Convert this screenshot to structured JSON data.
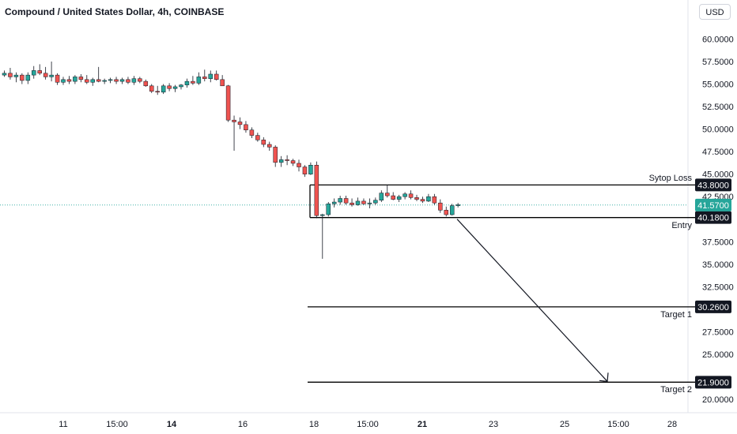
{
  "title": "Compound / United States Dollar, 4h, COINBASE",
  "currency": "USD",
  "chart_data": {
    "type": "candlestick",
    "symbol": "Compound / United States Dollar",
    "interval": "4h",
    "exchange": "COINBASE",
    "colors": {
      "up": "#26a69a",
      "down": "#ef5350",
      "line": "#000000",
      "current": "#26a69a"
    },
    "y_ticks": [
      "60.0000",
      "57.5000",
      "55.0000",
      "52.5000",
      "50.0000",
      "47.5000",
      "45.0000",
      "42.5000",
      "37.5000",
      "35.0000",
      "32.5000",
      "27.5000",
      "25.0000",
      "20.0000"
    ],
    "x_ticks": [
      "11",
      "15:00",
      "14",
      "16",
      "18",
      "15:00",
      "21",
      "23",
      "25",
      "15:00",
      "28"
    ],
    "x_ticks_bold": [
      "14",
      "21"
    ],
    "levels": [
      {
        "name": "Sytop Loss",
        "value": 43.8,
        "label": "43.8000"
      },
      {
        "name": "Entry",
        "value": 40.18,
        "label": "40.1800"
      },
      {
        "name": "Target 1",
        "value": 30.26,
        "label": "30.2600"
      },
      {
        "name": "Target 2",
        "value": 21.9,
        "label": "21.9000"
      }
    ],
    "current_price": {
      "value": 41.57,
      "label": "41.5700"
    },
    "candles": [
      [
        56.0,
        56.5,
        55.8,
        56.2
      ],
      [
        56.2,
        56.8,
        55.5,
        55.8
      ],
      [
        55.8,
        56.3,
        55.2,
        56.0
      ],
      [
        56.0,
        56.2,
        55.0,
        55.4
      ],
      [
        55.4,
        56.3,
        55.0,
        56.0
      ],
      [
        56.0,
        57.0,
        55.6,
        56.5
      ],
      [
        56.5,
        57.2,
        56.0,
        56.2
      ],
      [
        56.2,
        56.9,
        55.5,
        55.8
      ],
      [
        55.8,
        57.5,
        55.3,
        56.0
      ],
      [
        56.0,
        56.2,
        54.9,
        55.2
      ],
      [
        55.2,
        55.8,
        54.9,
        55.5
      ],
      [
        55.5,
        55.9,
        55.0,
        55.3
      ],
      [
        55.3,
        56.0,
        55.0,
        55.8
      ],
      [
        55.8,
        56.1,
        55.2,
        55.5
      ],
      [
        55.5,
        56.0,
        55.0,
        55.2
      ],
      [
        55.2,
        55.7,
        54.8,
        55.5
      ],
      [
        55.5,
        56.9,
        55.2,
        55.3
      ],
      [
        55.3,
        55.6,
        55.0,
        55.4
      ],
      [
        55.4,
        55.7,
        55.1,
        55.5
      ],
      [
        55.5,
        55.8,
        55.0,
        55.3
      ],
      [
        55.3,
        55.7,
        55.0,
        55.5
      ],
      [
        55.5,
        55.8,
        55.0,
        55.2
      ],
      [
        55.2,
        55.9,
        54.9,
        55.6
      ],
      [
        55.6,
        55.8,
        55.1,
        55.3
      ],
      [
        55.3,
        55.5,
        54.7,
        54.8
      ],
      [
        54.8,
        55.0,
        54.0,
        54.2
      ],
      [
        54.2,
        54.8,
        53.8,
        54.1
      ],
      [
        54.1,
        55.0,
        53.9,
        54.8
      ],
      [
        54.8,
        55.1,
        54.2,
        54.5
      ],
      [
        54.5,
        54.9,
        54.1,
        54.7
      ],
      [
        54.7,
        55.0,
        54.4,
        54.9
      ],
      [
        54.9,
        55.6,
        54.6,
        55.3
      ],
      [
        55.3,
        55.9,
        54.9,
        55.1
      ],
      [
        55.1,
        56.3,
        54.9,
        55.8
      ],
      [
        55.8,
        56.6,
        55.3,
        55.6
      ],
      [
        55.6,
        56.5,
        55.2,
        56.1
      ],
      [
        56.1,
        56.5,
        55.4,
        55.5
      ],
      [
        55.5,
        56.0,
        54.8,
        54.8
      ],
      [
        54.8,
        54.9,
        50.8,
        51.0
      ],
      [
        51.0,
        51.5,
        47.6,
        50.8
      ],
      [
        50.8,
        51.3,
        50.0,
        50.5
      ],
      [
        50.5,
        50.9,
        49.6,
        49.9
      ],
      [
        49.9,
        50.2,
        49.0,
        49.3
      ],
      [
        49.3,
        49.6,
        48.6,
        48.8
      ],
      [
        48.8,
        49.1,
        48.0,
        48.3
      ],
      [
        48.3,
        48.6,
        47.6,
        48.0
      ],
      [
        48.0,
        48.2,
        45.8,
        46.3
      ],
      [
        46.3,
        47.0,
        45.8,
        46.6
      ],
      [
        46.6,
        47.1,
        46.0,
        46.5
      ],
      [
        46.5,
        46.7,
        45.9,
        46.2
      ],
      [
        46.2,
        46.6,
        45.3,
        45.8
      ],
      [
        45.8,
        46.0,
        44.7,
        45.0
      ],
      [
        45.0,
        46.3,
        44.9,
        46.0
      ],
      [
        46.0,
        46.4,
        40.1,
        40.4
      ],
      [
        40.4,
        40.6,
        35.6,
        40.5
      ],
      [
        40.5,
        41.9,
        40.3,
        41.7
      ],
      [
        41.7,
        42.3,
        41.3,
        41.9
      ],
      [
        41.9,
        42.6,
        41.6,
        42.3
      ],
      [
        42.3,
        42.6,
        41.6,
        41.8
      ],
      [
        41.8,
        42.3,
        41.4,
        41.6
      ],
      [
        41.6,
        42.4,
        41.5,
        42.0
      ],
      [
        42.0,
        42.3,
        41.6,
        41.7
      ],
      [
        41.7,
        42.3,
        41.2,
        41.8
      ],
      [
        41.8,
        42.4,
        41.6,
        42.1
      ],
      [
        42.1,
        43.2,
        41.9,
        42.9
      ],
      [
        42.9,
        43.8,
        42.4,
        42.6
      ],
      [
        42.6,
        43.0,
        42.1,
        42.2
      ],
      [
        42.2,
        42.7,
        41.9,
        42.5
      ],
      [
        42.5,
        43.0,
        42.2,
        42.8
      ],
      [
        42.8,
        43.2,
        42.2,
        42.4
      ],
      [
        42.4,
        42.7,
        42.0,
        42.2
      ],
      [
        42.2,
        42.5,
        41.8,
        42.0
      ],
      [
        42.0,
        42.8,
        41.9,
        42.5
      ],
      [
        42.5,
        42.8,
        41.6,
        41.8
      ],
      [
        41.8,
        42.2,
        40.7,
        41.0
      ],
      [
        41.0,
        41.4,
        40.3,
        40.5
      ],
      [
        40.5,
        41.7,
        40.4,
        41.5
      ],
      [
        41.5,
        41.8,
        41.3,
        41.6
      ]
    ]
  }
}
